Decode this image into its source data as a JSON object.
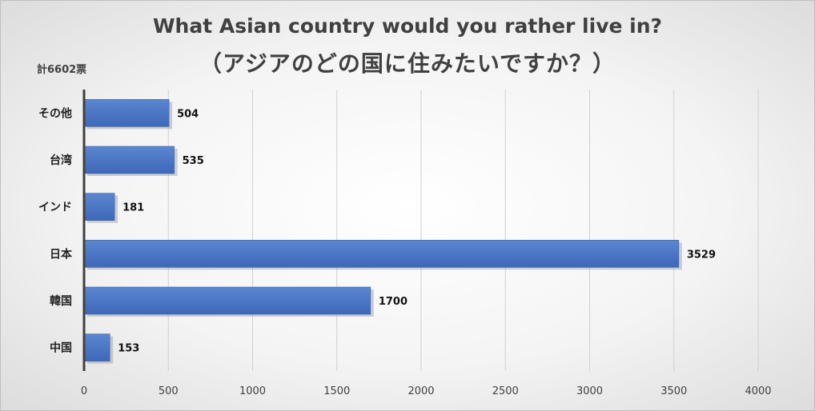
{
  "chart_data": {
    "type": "bar",
    "orientation": "horizontal",
    "title": "What Asian country would you rather live in?",
    "subtitle": "（アジアのどの国に住みたいですか？）",
    "note": "計6602票",
    "categories": [
      "その他",
      "台湾",
      "インド",
      "日本",
      "韓国",
      "中国"
    ],
    "values": [
      504,
      535,
      181,
      3529,
      1700,
      153
    ],
    "xlim": [
      0,
      4000
    ],
    "x_ticks": [
      0,
      500,
      1000,
      1500,
      2000,
      2500,
      3000,
      3500,
      4000
    ],
    "grid": true,
    "legend": "none",
    "bar_color": "#4472c4"
  }
}
